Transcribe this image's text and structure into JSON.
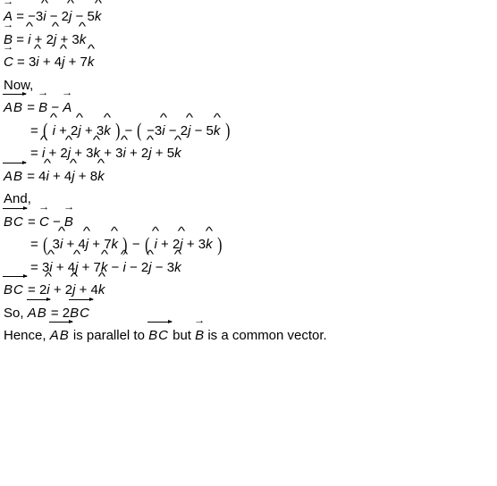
{
  "typography": {
    "font_family": "Verdana, Geneva, sans-serif",
    "font_size_pt": 11,
    "color": "#000000",
    "background_color": "#ffffff",
    "line_height": 1.7
  },
  "symbols": {
    "vector_arrow": "→",
    "hat": "^",
    "i": "i",
    "j": "j",
    "k": "k",
    "eq": " = ",
    "minus": " − ",
    "plus": " + "
  },
  "lines": {
    "l01": {
      "left": "A",
      "rhs_terms": [
        "−3",
        "i",
        " − 2",
        "j",
        " − 5",
        "k"
      ]
    },
    "l02": {
      "left": "B",
      "rhs_terms": [
        "",
        "i",
        " + 2",
        "j",
        " + 3",
        "k"
      ]
    },
    "l03": {
      "left": "C",
      "rhs_terms": [
        "3",
        "i",
        " + 4",
        "j",
        " + 7",
        "k"
      ]
    },
    "l04": "Now,",
    "l05": {
      "left": "AB",
      "rhs_vecs": [
        "B",
        "A"
      ],
      "op": " − "
    },
    "l06": {
      "groupA": [
        "",
        "i",
        " + 2",
        "j",
        " + 3",
        "k"
      ],
      "op": " − ",
      "groupB": [
        "−3",
        "i",
        " − 2",
        "j",
        " − 5",
        "k"
      ]
    },
    "l07": {
      "rhs_terms": [
        "",
        "i",
        " + 2",
        "j",
        " + 3",
        "k",
        " + 3",
        "i",
        " + 2",
        "j",
        " + 5",
        "k"
      ]
    },
    "l08": {
      "left": "AB",
      "rhs_terms": [
        "4",
        "i",
        " + 4",
        "j",
        " + 8",
        "k"
      ]
    },
    "l09": "And,",
    "l10": {
      "left": "BC",
      "rhs_vecs": [
        "C",
        "B"
      ],
      "op": " − "
    },
    "l11": {
      "groupA": [
        "3",
        "i",
        " + 4",
        "j",
        " + 7",
        "k"
      ],
      "op": " − ",
      "groupB": [
        "",
        "i",
        " + 2",
        "j",
        " + 3",
        "k"
      ]
    },
    "l12": {
      "rhs_terms": [
        "3",
        "i",
        " + 4",
        "j",
        " + 7",
        "k",
        " − ",
        "i",
        " − 2",
        "j",
        " − 3",
        "k"
      ]
    },
    "l13": {
      "left": "BC",
      "rhs_terms": [
        "2",
        "i",
        " + 2",
        "j",
        " + 4",
        "k"
      ]
    },
    "l14_prefix": "So, ",
    "l14_left": "AB",
    "l14_mid": " = 2",
    "l14_right": "BC",
    "l15_a": "Hence, ",
    "l15_b": "AB",
    "l15_c": " is parallel to ",
    "l15_d": "BC",
    "l15_e": " but ",
    "l15_f": "B",
    "l15_g": " is a common vector."
  }
}
